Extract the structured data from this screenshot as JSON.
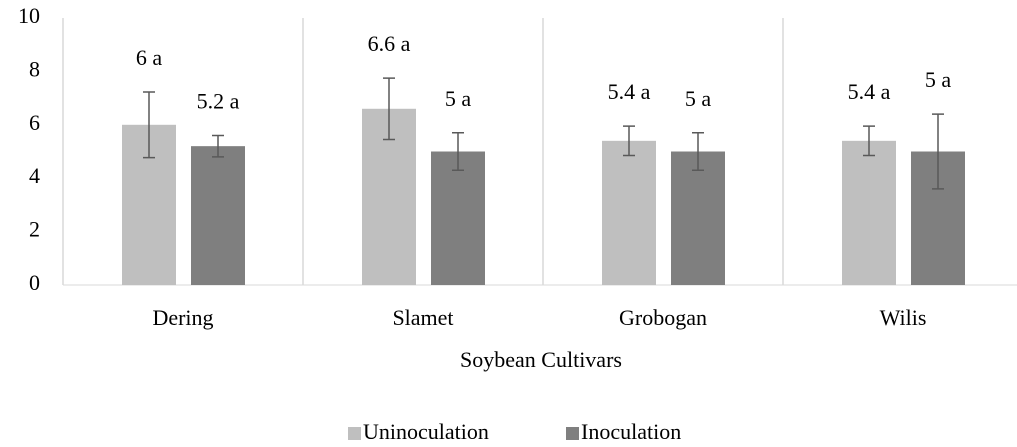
{
  "chart_data": {
    "type": "bar",
    "x_label": "Soybean Cultivars",
    "categories": [
      "Dering",
      "Slamet",
      "Grobogan",
      "Wilis"
    ],
    "series": [
      {
        "name": "Uninoculation",
        "color": "#bfbfbf",
        "values": [
          6,
          6.6,
          5.4,
          5.4
        ],
        "errors": [
          1.23,
          1.15,
          0.55,
          0.55
        ],
        "value_labels": [
          "6 a",
          "6.6 a",
          "5.4 a",
          "5.4 a"
        ]
      },
      {
        "name": "Inoculation",
        "color": "#7f7f7f",
        "values": [
          5.2,
          5,
          5,
          5
        ],
        "errors": [
          0.4,
          0.7,
          0.7,
          1.4
        ],
        "value_labels": [
          "5.2 a",
          "5 a",
          "5 a",
          "5 a"
        ]
      }
    ],
    "ylim": [
      0,
      10
    ],
    "yticks": [
      0,
      2,
      4,
      6,
      8,
      10
    ],
    "grid": false,
    "legend": "bottom"
  }
}
